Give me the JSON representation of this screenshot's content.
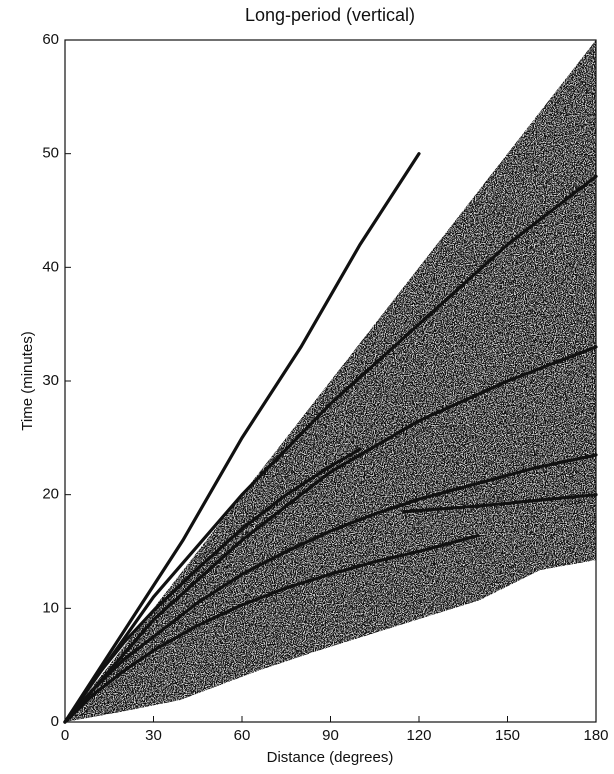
{
  "chart_data": {
    "type": "line",
    "title": "Long-period (vertical)",
    "xlabel": "Distance (degrees)",
    "ylabel": "Time (minutes)",
    "xlim": [
      0,
      180
    ],
    "xticks": [
      0,
      30,
      60,
      90,
      120,
      150,
      180
    ],
    "ylim": [
      0,
      60
    ],
    "yticks": [
      0,
      10,
      20,
      30,
      40,
      50,
      60
    ],
    "color": "#111111",
    "series": [
      {
        "x": [
          0,
          10,
          20,
          30,
          45,
          60,
          75,
          90,
          105,
          120,
          140
        ],
        "values": [
          0,
          2.5,
          4.5,
          6.3,
          8.5,
          10.3,
          11.8,
          13,
          14.1,
          15,
          16.4
        ]
      },
      {
        "x": [
          0,
          10,
          20,
          30,
          45,
          60,
          75,
          90,
          105,
          120,
          140,
          160,
          180
        ],
        "values": [
          0,
          3,
          5.5,
          7.5,
          10.5,
          13,
          15,
          16.8,
          18.3,
          19.6,
          21,
          22.4,
          23.5
        ]
      },
      {
        "x": [
          0,
          10,
          20,
          30,
          45,
          60,
          75,
          90,
          100
        ],
        "values": [
          0,
          3.8,
          7,
          9.8,
          13.5,
          17,
          20,
          22.5,
          24
        ]
      },
      {
        "x": [
          0,
          30,
          60,
          90,
          120,
          150,
          180
        ],
        "values": [
          0,
          9,
          16,
          22,
          26.5,
          30,
          33
        ]
      },
      {
        "x": [
          0,
          30,
          60,
          90,
          120,
          150,
          180
        ],
        "values": [
          0,
          11,
          20,
          28,
          35,
          42,
          48
        ]
      },
      {
        "x": [
          0,
          20,
          40,
          60,
          80,
          100,
          120
        ],
        "values": [
          0,
          8,
          16,
          25,
          33,
          42,
          50
        ]
      },
      {
        "x": [
          115,
          140,
          160,
          180
        ],
        "values": [
          18.5,
          19,
          19.5,
          20
        ]
      }
    ]
  }
}
